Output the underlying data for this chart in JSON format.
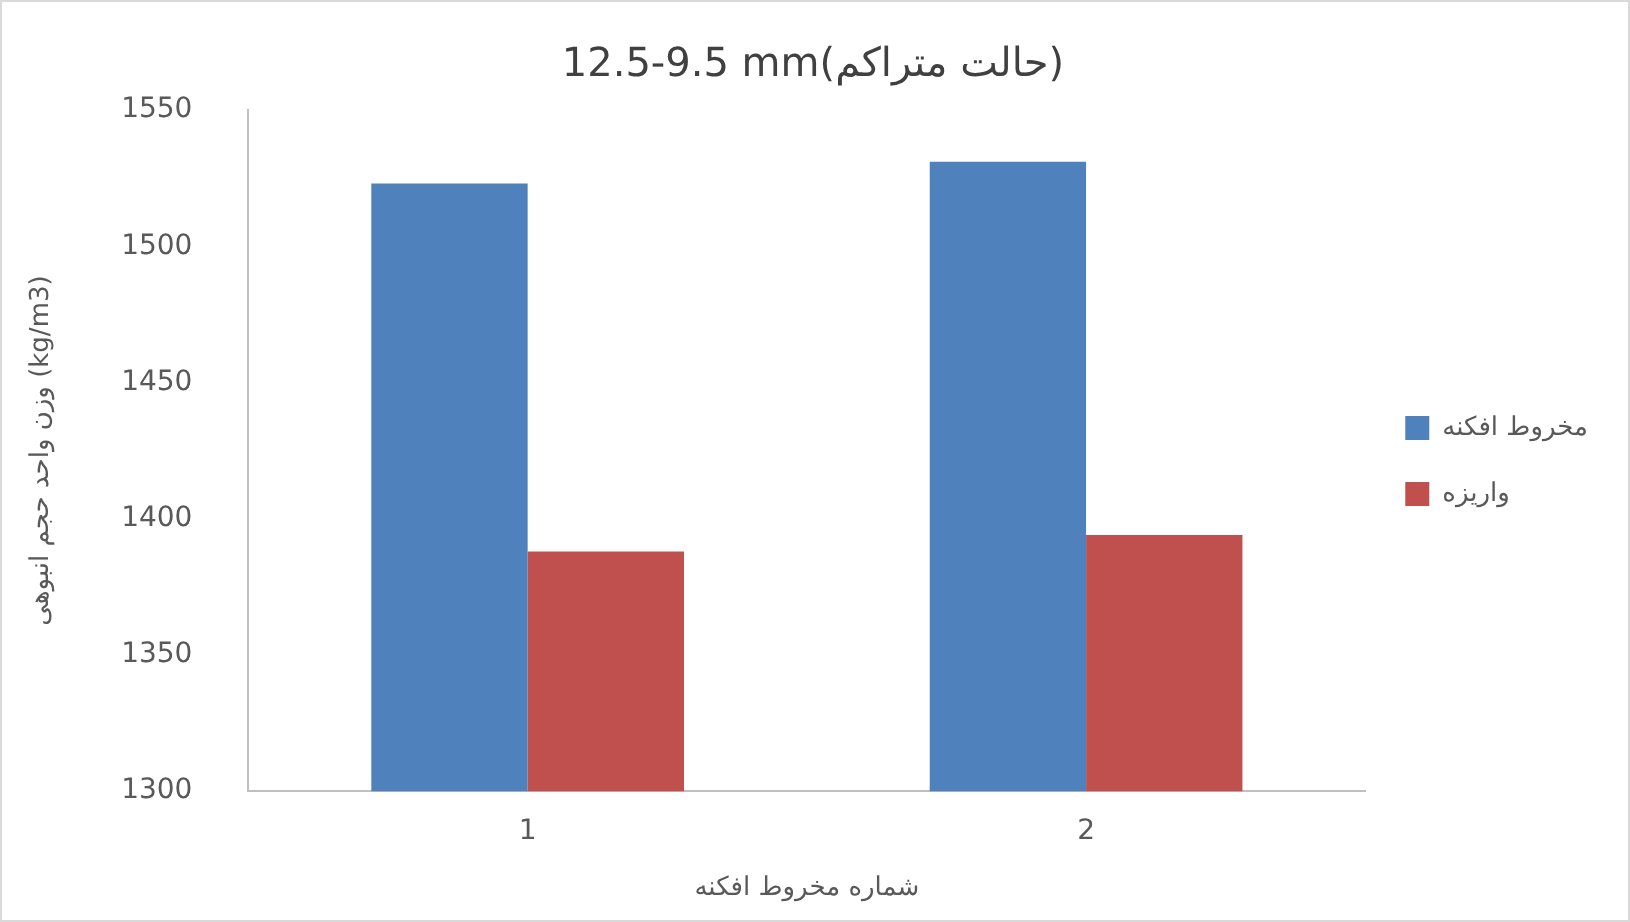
{
  "chart_data": {
    "type": "bar",
    "title": "12.5-9.5 mm(حالت متراکم)",
    "xlabel": "شماره مخروط افکنه",
    "ylabel": "وزن واحد حجم انبوهی (kg/m3)",
    "categories": [
      "1",
      "2"
    ],
    "series": [
      {
        "name": "مخروط افکنه",
        "color": "#4f81bd",
        "values": [
          1523,
          1531
        ]
      },
      {
        "name": "واریزه",
        "color": "#c0504d",
        "values": [
          1388,
          1394
        ]
      }
    ],
    "ylim": [
      1300,
      1550
    ],
    "yticks": [
      1300,
      1350,
      1400,
      1450,
      1500,
      1550
    ],
    "grid": false,
    "legend": "right"
  }
}
